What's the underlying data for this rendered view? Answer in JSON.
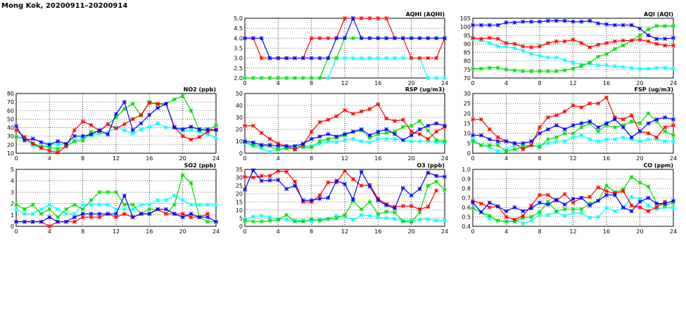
{
  "page_title": "Mong Kok, 20200911–20200914",
  "series_colors": [
    "#ff0000",
    "#0000ff",
    "#00dd00",
    "#00ffff"
  ],
  "chart_data": [
    {
      "type": "line",
      "title": "AQHI (AQHI)",
      "ylim": [
        2,
        5
      ],
      "yticks": [
        "2.0",
        "2.5",
        "3.0",
        "3.5",
        "4.0",
        "4.5",
        "5.0"
      ],
      "xticks": [
        "0",
        "4",
        "8",
        "12",
        "16",
        "20",
        "24"
      ],
      "xlim": [
        0,
        24
      ],
      "grid": true,
      "series": [
        {
          "values": [
            4,
            4,
            3,
            3,
            3,
            3,
            3,
            3,
            4,
            4,
            4,
            4,
            5,
            5,
            5,
            5,
            5,
            5,
            4,
            4,
            3,
            3,
            3,
            3,
            4
          ]
        },
        {
          "values": [
            4,
            4,
            4,
            3,
            3,
            3,
            3,
            3,
            3,
            3,
            3,
            4,
            4,
            5,
            4,
            4,
            4,
            4,
            4,
            4,
            4,
            4,
            4,
            4,
            4
          ]
        },
        {
          "values": [
            2,
            2,
            2,
            2,
            2,
            2,
            2,
            2,
            2,
            2,
            3,
            3,
            4,
            4,
            4,
            4,
            4,
            4,
            4,
            4,
            4,
            4,
            4,
            4,
            4
          ]
        },
        {
          "values": [
            null,
            null,
            null,
            null,
            null,
            null,
            null,
            null,
            null,
            null,
            2,
            3,
            3,
            3,
            3,
            3,
            3,
            3,
            3,
            3,
            3,
            3,
            2,
            2,
            2
          ]
        }
      ]
    },
    {
      "type": "line",
      "title": "AQI (AQI)",
      "ylim": [
        70,
        105
      ],
      "yticks": [
        "70",
        "75",
        "80",
        "85",
        "90",
        "95",
        "100",
        "105"
      ],
      "xticks": [
        "0",
        "4",
        "8",
        "12",
        "16",
        "20",
        "24"
      ],
      "xlim": [
        0,
        24
      ],
      "grid": true,
      "series": [
        {
          "values": [
            93.5,
            93,
            93.5,
            93,
            90.5,
            90,
            88.5,
            88,
            88.5,
            90.5,
            91.5,
            91.5,
            92.5,
            90.5,
            88,
            89.5,
            90.5,
            91.5,
            92,
            92,
            92.5,
            91.5,
            90,
            89,
            89
          ]
        },
        {
          "values": [
            101,
            101,
            101,
            101,
            102.5,
            102.5,
            103,
            103,
            103,
            103.5,
            103.5,
            103.5,
            103,
            103,
            103.5,
            102,
            101.5,
            101,
            101,
            101,
            99,
            95,
            93,
            93,
            93.5
          ]
        },
        {
          "values": [
            75.5,
            75.5,
            76,
            76,
            75,
            74.5,
            74,
            74,
            74,
            74,
            74,
            74.5,
            75.5,
            77,
            79,
            82.5,
            84,
            87,
            89,
            92,
            95,
            98.5,
            100.5,
            100.5,
            100.5
          ]
        },
        {
          "values": [
            93,
            92,
            90.5,
            88.5,
            88.5,
            87.5,
            86,
            84,
            83,
            82,
            82,
            80.5,
            79,
            78,
            78.5,
            77.5,
            77.5,
            77,
            76.5,
            76,
            75.5,
            75.5,
            76,
            76,
            75.5
          ]
        }
      ]
    },
    {
      "type": "line",
      "title": "NO2 (ppb)",
      "ylim": [
        10,
        80
      ],
      "yticks": [
        "10",
        "20",
        "30",
        "40",
        "50",
        "60",
        "70",
        "80"
      ],
      "xticks": [
        "0",
        "4",
        "8",
        "12",
        "16",
        "20",
        "24"
      ],
      "xlim": [
        0,
        24
      ],
      "grid": true,
      "series": [
        {
          "values": [
            37,
            29,
            21,
            16,
            13,
            11,
            18,
            37,
            47,
            43,
            36,
            44,
            39,
            44,
            50,
            55,
            69,
            68,
            68,
            41,
            30,
            26,
            29,
            35,
            38
          ]
        },
        {
          "values": [
            42,
            25,
            27,
            23,
            20,
            24,
            21,
            30,
            30,
            32,
            37,
            32,
            56,
            70,
            37,
            45,
            55,
            63,
            68,
            40,
            38,
            41,
            38,
            38,
            37
          ]
        },
        {
          "values": [
            29,
            28,
            22,
            18,
            17,
            15,
            18,
            24,
            25,
            35,
            35,
            44,
            52,
            62,
            68,
            54,
            70,
            67,
            68,
            73,
            77,
            60,
            37,
            36,
            43
          ]
        },
        {
          "values": [
            29,
            27,
            19,
            17,
            21,
            20,
            21,
            25,
            28,
            31,
            33,
            34,
            40,
            37,
            33,
            38,
            41,
            45,
            40,
            40,
            36,
            37,
            35,
            32,
            28
          ]
        }
      ]
    },
    {
      "type": "line",
      "title": "RSP (ug/m3)",
      "ylim": [
        0,
        50
      ],
      "yticks": [
        "0",
        "10",
        "20",
        "30",
        "40",
        "50"
      ],
      "xticks": [
        "0",
        "4",
        "8",
        "12",
        "16",
        "20",
        "24"
      ],
      "xlim": [
        0,
        24
      ],
      "grid": true,
      "series": [
        {
          "values": [
            23,
            23,
            17,
            12,
            8,
            6,
            3,
            7,
            18,
            26,
            28,
            31,
            36,
            33,
            35,
            37,
            41,
            29,
            27,
            28,
            18,
            16,
            12,
            18,
            22
          ]
        },
        {
          "values": [
            10,
            9,
            7,
            7,
            6,
            6,
            6,
            8,
            12,
            14,
            16,
            14,
            16,
            18,
            20,
            15,
            18,
            20,
            16,
            11,
            15,
            20,
            23,
            25,
            23
          ]
        },
        {
          "values": [
            9,
            7,
            6,
            6,
            3,
            4,
            4,
            5,
            5,
            10,
            12,
            13,
            15,
            18,
            19,
            13,
            16,
            17,
            18,
            22,
            23,
            27,
            19,
            11,
            10
          ]
        },
        {
          "values": [
            9,
            6,
            4,
            1,
            3,
            5,
            6,
            6,
            6,
            8,
            10,
            9,
            11,
            12,
            10,
            9,
            12,
            12,
            12,
            11,
            10,
            10,
            10,
            9,
            9
          ]
        }
      ]
    },
    {
      "type": "line",
      "title": "FSP (ug/m3)",
      "ylim": [
        0,
        30
      ],
      "yticks": [
        "0",
        "5",
        "10",
        "15",
        "20",
        "25",
        "30"
      ],
      "xticks": [
        "0",
        "4",
        "8",
        "12",
        "16",
        "20",
        "24"
      ],
      "xlim": [
        0,
        24
      ],
      "grid": true,
      "series": [
        {
          "values": [
            17,
            17,
            12,
            8,
            6,
            5,
            2,
            4,
            13,
            18,
            19,
            21,
            24,
            23,
            25,
            25,
            28,
            18,
            17,
            19,
            11,
            10,
            8,
            13,
            14
          ]
        },
        {
          "values": [
            9,
            9,
            7,
            6,
            6,
            5,
            5,
            6,
            10,
            12,
            14,
            12,
            14,
            15,
            16,
            13,
            15,
            17,
            13,
            8,
            11,
            15,
            17,
            18,
            17
          ]
        },
        {
          "values": [
            6,
            4,
            4,
            4,
            1,
            2,
            3,
            4,
            3,
            7,
            8,
            10,
            10,
            13,
            15,
            11,
            14,
            13,
            14,
            16,
            15,
            20,
            16,
            11,
            9
          ]
        },
        {
          "values": [
            7,
            4,
            3,
            1,
            2,
            4,
            4,
            4,
            4,
            5,
            6,
            6,
            8,
            9,
            7,
            6,
            7,
            7,
            8,
            7,
            6,
            7,
            7,
            6,
            6
          ]
        }
      ]
    },
    {
      "type": "line",
      "title": "SO2 (ppb)",
      "ylim": [
        0,
        5
      ],
      "yticks": [
        "0",
        "1",
        "2",
        "3",
        "4",
        "5"
      ],
      "xticks": [
        "0",
        "4",
        "8",
        "12",
        "16",
        "20",
        "24"
      ],
      "xlim": [
        0,
        24
      ],
      "grid": true,
      "series": [
        {
          "values": [
            0.4,
            0.4,
            0.4,
            0.4,
            0,
            0.4,
            0.4,
            0.4,
            0.8,
            0.8,
            0.8,
            1.1,
            0.8,
            1.1,
            0.8,
            1.1,
            1.1,
            1.5,
            1.1,
            1.1,
            1.1,
            0.8,
            0.8,
            1.1,
            null
          ]
        },
        {
          "values": [
            0.4,
            0.4,
            0.4,
            0.4,
            0.8,
            0.4,
            0.4,
            0.8,
            1.1,
            1.1,
            1.1,
            1.1,
            1.1,
            2.7,
            0.8,
            1.1,
            1.1,
            1.5,
            1.5,
            1.1,
            0.8,
            1.1,
            0.8,
            0.8,
            0.4
          ]
        },
        {
          "values": [
            1.9,
            1.5,
            1.9,
            1.1,
            1.5,
            0.8,
            1.5,
            1.9,
            1.5,
            2.3,
            3.0,
            3.0,
            3.0,
            1.9,
            1.9,
            1.1,
            1.5,
            1.5,
            1.1,
            1.9,
            4.5,
            3.8,
            0.8,
            0.4,
            0.4
          ]
        },
        {
          "values": [
            1.5,
            1.1,
            1.1,
            1.5,
            1.9,
            1.5,
            1.1,
            1.1,
            1.9,
            1.9,
            1.9,
            1.9,
            1.5,
            1.5,
            1.5,
            1.9,
            1.9,
            2.3,
            2.3,
            2.7,
            2.3,
            1.9,
            1.9,
            1.9,
            1.9
          ]
        }
      ]
    },
    {
      "type": "line",
      "title": "O3 (ppb)",
      "ylim": [
        0,
        35
      ],
      "yticks": [
        "0",
        "5",
        "10",
        "15",
        "20",
        "25",
        "30",
        "35"
      ],
      "xticks": [
        "0",
        "4",
        "8",
        "12",
        "16",
        "20",
        "24"
      ],
      "xlim": [
        0,
        24
      ],
      "grid": true,
      "series": [
        {
          "values": [
            30.5,
            30,
            31,
            31,
            34,
            33.5,
            27.5,
            15,
            15,
            19,
            27,
            27,
            34,
            29,
            25,
            25.5,
            17,
            13.5,
            12,
            12.5,
            12.5,
            10.5,
            12,
            22,
            null
          ]
        },
        {
          "values": [
            22.5,
            34.5,
            28,
            28.3,
            28.5,
            23,
            25,
            16,
            16,
            17,
            17.5,
            28,
            26,
            16.5,
            33.5,
            24.5,
            16,
            13,
            11,
            23.5,
            19,
            23,
            33,
            31,
            30.5
          ]
        },
        {
          "values": [
            3.5,
            3,
            3,
            3.5,
            4,
            7,
            3,
            3,
            4.5,
            3.5,
            4.5,
            5,
            7,
            15.5,
            10.5,
            15,
            7.5,
            9,
            8.5,
            3,
            2.5,
            8.5,
            25,
            27.5,
            22.5
          ]
        },
        {
          "values": [
            4.5,
            6,
            6.5,
            5.5,
            4.5,
            4,
            3.5,
            3.5,
            3,
            4.5,
            4.5,
            6.5,
            6,
            4,
            7,
            6.5,
            5.5,
            5,
            4.5,
            3.5,
            3.5,
            4,
            4.5,
            3.5,
            3.5
          ]
        }
      ]
    },
    {
      "type": "line",
      "title": "CO (ppm)",
      "ylim": [
        0.4,
        1.0
      ],
      "yticks": [
        "0.4",
        "0.5",
        "0.6",
        "0.7",
        "0.8",
        "0.9",
        "1.0"
      ],
      "xticks": [
        "0",
        "4",
        "8",
        "12",
        "16",
        "20",
        "24"
      ],
      "xlim": [
        0,
        24
      ],
      "grid": true,
      "series": [
        {
          "values": [
            0.67,
            0.64,
            0.6,
            0.61,
            0.5,
            0.47,
            0.51,
            0.62,
            0.73,
            0.73,
            0.67,
            0.74,
            0.65,
            0.7,
            0.71,
            0.81,
            0.77,
            0.75,
            0.77,
            0.62,
            0.6,
            0.56,
            0.6,
            0.66,
            null
          ]
        },
        {
          "values": [
            0.65,
            0.55,
            0.65,
            0.61,
            0.56,
            0.6,
            0.56,
            0.59,
            0.65,
            0.63,
            0.68,
            0.63,
            0.69,
            0.7,
            0.62,
            0.67,
            0.73,
            0.73,
            0.6,
            0.56,
            0.66,
            0.7,
            0.64,
            0.64,
            0.67
          ]
        },
        {
          "values": [
            0.59,
            0.55,
            0.51,
            0.46,
            0.45,
            0.45,
            0.49,
            0.5,
            0.55,
            0.66,
            0.56,
            0.58,
            0.58,
            0.58,
            0.64,
            0.67,
            0.83,
            0.76,
            0.79,
            0.92,
            0.86,
            0.82,
            0.64,
            0.62,
            0.65
          ]
        },
        {
          "values": [
            0.59,
            0.55,
            0.48,
            0.46,
            0.45,
            0.47,
            0.43,
            0.46,
            0.52,
            0.52,
            0.55,
            0.51,
            0.54,
            0.54,
            0.49,
            0.5,
            0.59,
            0.56,
            0.59,
            0.71,
            0.69,
            0.62,
            0.58,
            0.6,
            0.59
          ]
        }
      ]
    }
  ]
}
